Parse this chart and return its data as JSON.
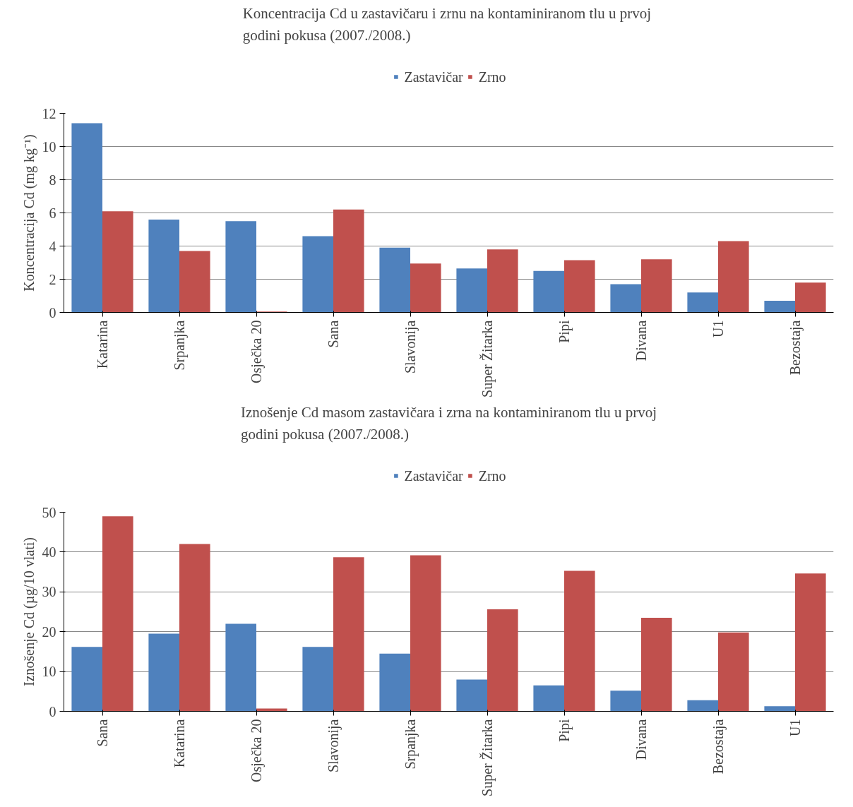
{
  "chart_data": [
    {
      "type": "bar",
      "title": "Koncentracija Cd u zastavičaru i zrnu  na kontaminiranom tlu u prvoj\ngodini pokusa (2007./2008.)",
      "ylabel": "Koncentracija Cd (mg kg⁻¹)",
      "categories": [
        "Katarina",
        "Srpanjka",
        "Osječka 20",
        "Sana",
        "Slavonija",
        "Super Žitarka",
        "Pipi",
        "Divana",
        "U1",
        "Bezostaja"
      ],
      "series": [
        {
          "name": "Zastavičar",
          "color": "#4f81bd",
          "values": [
            11.4,
            5.6,
            5.5,
            4.6,
            3.9,
            2.65,
            2.5,
            1.7,
            1.2,
            0.7
          ]
        },
        {
          "name": "Zrno",
          "color": "#c0504d",
          "values": [
            6.1,
            3.7,
            0.05,
            6.2,
            2.95,
            3.8,
            3.15,
            3.2,
            4.3,
            1.8
          ]
        }
      ],
      "ylim": [
        0,
        12
      ],
      "yticks": [
        0,
        2,
        4,
        6,
        8,
        10,
        12
      ],
      "grid": "y",
      "legend": "top"
    },
    {
      "type": "bar",
      "title": "Iznošenje Cd masom zastavičara i zrna na kontaminiranom tlu u prvoj\ngodini pokusa (2007./2008.)",
      "ylabel": "Iznošenje Cd (µg/10 vlati)",
      "categories": [
        "Sana",
        "Katarina",
        "Osječka 20",
        "Slavonija",
        "Srpanjka",
        "Super Žitarka",
        "Pipi",
        "Divana",
        "Bezostaja",
        "U1"
      ],
      "series": [
        {
          "name": "Zastavičar",
          "color": "#4f81bd",
          "values": [
            16.2,
            19.5,
            22,
            16.2,
            14.5,
            8,
            6.5,
            5.2,
            2.8,
            1.3
          ]
        },
        {
          "name": "Zrno",
          "color": "#c0504d",
          "values": [
            49,
            42,
            0.7,
            38.7,
            39.2,
            25.6,
            35.3,
            23.5,
            19.8,
            34.6
          ]
        }
      ],
      "ylim": [
        0,
        50
      ],
      "yticks": [
        0,
        10,
        20,
        30,
        40,
        50
      ],
      "grid": "y",
      "legend": "top"
    }
  ]
}
